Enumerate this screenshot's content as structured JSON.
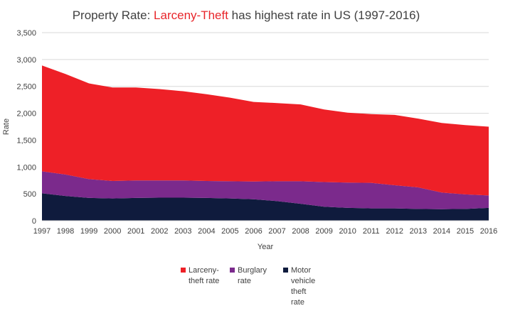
{
  "chart_data": {
    "type": "area",
    "stacked": true,
    "title_parts": [
      {
        "text": "Property Rate: ",
        "accent": false
      },
      {
        "text": "Larceny-Theft",
        "accent": true
      },
      {
        "text": " has highest rate in US  (1997-2016)",
        "accent": false
      }
    ],
    "xlabel": "Year",
    "ylabel": "Rate",
    "ylim": [
      0,
      3500
    ],
    "yticks": [
      0,
      500,
      1000,
      1500,
      2000,
      2500,
      3000,
      3500
    ],
    "ytick_labels": [
      "0",
      "500",
      "1,000",
      "1,500",
      "2,000",
      "2,500",
      "3,000",
      "3,500"
    ],
    "grid": true,
    "legend_position": "bottom",
    "x": [
      "1997",
      "1998",
      "1999",
      "2000",
      "2001",
      "2002",
      "2003",
      "2004",
      "2005",
      "2006",
      "2007",
      "2008",
      "2009",
      "2010",
      "2011",
      "2012",
      "2013",
      "2014",
      "2015",
      "2016"
    ],
    "series": [
      {
        "name": "Motor vehicle theft rate",
        "legend_lines": [
          "Motor",
          "vehicle",
          "theft",
          "rate"
        ],
        "color": "#0f1b3d",
        "values": [
          510,
          460,
          425,
          415,
          425,
          430,
          430,
          425,
          415,
          400,
          365,
          315,
          260,
          240,
          230,
          230,
          220,
          215,
          220,
          240
        ]
      },
      {
        "name": "Burglary rate",
        "legend_lines": [
          "Burglary",
          "rate"
        ],
        "color": "#7b2a8c",
        "values": [
          410,
          400,
          350,
          325,
          325,
          320,
          320,
          315,
          320,
          330,
          370,
          420,
          460,
          470,
          475,
          430,
          400,
          310,
          270,
          230
        ]
      },
      {
        "name": "Larceny-theft rate",
        "legend_lines": [
          "Larceny-",
          "theft rate"
        ],
        "color": "#ee2027",
        "values": [
          1970,
          1870,
          1780,
          1740,
          1730,
          1700,
          1660,
          1615,
          1555,
          1480,
          1455,
          1430,
          1350,
          1300,
          1280,
          1310,
          1280,
          1295,
          1290,
          1280
        ]
      }
    ]
  }
}
